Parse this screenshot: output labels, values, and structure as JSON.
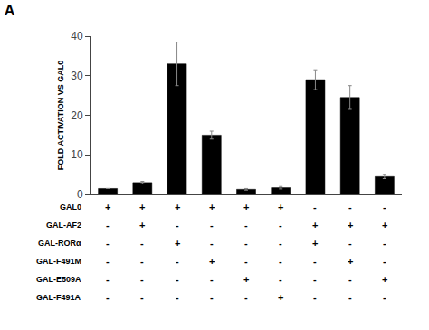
{
  "chart_data": {
    "type": "bar",
    "title": "A",
    "ylabel": "FOLD ACTIVATION VS GAL0",
    "categories": [
      null,
      null,
      null,
      null,
      null,
      null,
      null,
      null,
      null
    ],
    "values": [
      1.5,
      3.0,
      33.0,
      15.0,
      1.3,
      1.7,
      29.0,
      24.5,
      4.5
    ],
    "errors": [
      0.0,
      0.3,
      5.5,
      1.0,
      0.2,
      0.3,
      2.5,
      3.0,
      0.5
    ],
    "color": "#000000",
    "ylim": [
      0,
      40
    ],
    "yticks": [
      0,
      10,
      20,
      30,
      40
    ],
    "grid": false,
    "tick_labels": "y",
    "table": {
      "rows": [
        {
          "label": "GAL0",
          "cells": [
            "+",
            "+",
            "+",
            "+",
            "+",
            "+",
            "-",
            "-",
            "-"
          ]
        },
        {
          "label": "GAL-AF2",
          "cells": [
            "-",
            "+",
            "-",
            "-",
            "-",
            "-",
            "+",
            "+",
            "+"
          ]
        },
        {
          "label": "GAL-RORα",
          "cells": [
            "-",
            "-",
            "+",
            "-",
            "-",
            "-",
            "+",
            "-",
            "-"
          ]
        },
        {
          "label": "GAL-F491M",
          "cells": [
            "-",
            "-",
            "-",
            "+",
            "-",
            "-",
            "-",
            "+",
            "-"
          ]
        },
        {
          "label": "GAL-E509A",
          "cells": [
            "-",
            "-",
            "-",
            "-",
            "+",
            "-",
            "-",
            "-",
            "+"
          ]
        },
        {
          "label": "GAL-F491A",
          "cells": [
            "-",
            "-",
            "-",
            "-",
            "-",
            "+",
            "-",
            "-",
            "-"
          ]
        }
      ]
    }
  }
}
